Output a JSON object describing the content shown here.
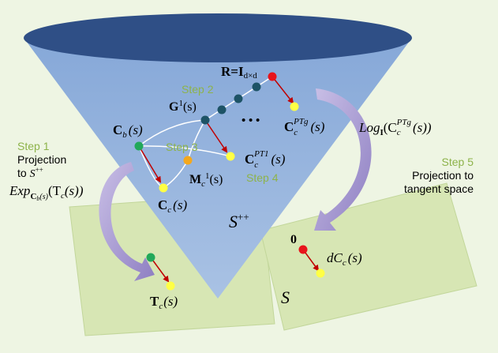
{
  "colors": {
    "background": "#eef5e3",
    "cone_fill": "#9bb8de",
    "cone_top": "#2f4f86",
    "tangent_plane": "#d7e6b4",
    "step_text": "#8db34a",
    "arrow": "#c00000",
    "curved_arrow": "#9c8ec9",
    "node_dark": "#1d5366",
    "node_green": "#22a85a",
    "node_orange": "#f4a81d",
    "node_yellow": "#ffff44",
    "node_red": "#e8141b"
  },
  "labels": {
    "r_identity": "R=I",
    "r_identity_sub": "d×d",
    "g1": "G",
    "g1_sup": "1",
    "g1_arg": "(s)",
    "ellipsis": "• • •",
    "c_c_ptg": "C",
    "c_c_ptg_sub": "c",
    "c_c_ptg_sup": "PTg",
    "c_c_ptg_arg": "(s)",
    "log_prefix": "Log",
    "log_sub": "I",
    "log_c": "(C",
    "log_c_sub": "c",
    "log_c_sup": "PTg",
    "log_arg": "(s))",
    "c_b": "C",
    "c_b_sub": "b",
    "c_b_arg": "(s)",
    "c_c_pt1": "C",
    "c_c_pt1_sub": "c",
    "c_c_pt1_sup": "PT1",
    "c_c_pt1_arg": "(s)",
    "m_c1": "M",
    "m_c1_sub": "c",
    "m_c1_sup": "1",
    "m_c1_arg": "(s)",
    "c_c": "C",
    "c_c_sub": "c",
    "c_c_arg": "(s)",
    "exp_prefix": "Exp",
    "exp_sub": "C",
    "exp_sub_b": "b",
    "exp_sub_arg": "(s)",
    "exp_arg": "(T",
    "exp_arg_sub": "c",
    "exp_arg_end": "(s))",
    "s_pp": "S",
    "s_pp_sup": "++",
    "s_plane": "S",
    "zero": "0",
    "dc": "dC",
    "dc_sub": "c",
    "dc_arg": "(s)",
    "t_c": "T",
    "t_c_sub": "c",
    "t_c_arg": "(s)"
  },
  "steps": {
    "step1": {
      "title": "Step 1",
      "line1": "Projection",
      "line2": "to ",
      "line2_s": "S",
      "line2_sup": "++"
    },
    "step2": {
      "title": "Step 2"
    },
    "step3": {
      "title": "Step 3"
    },
    "step4": {
      "title": "Step 4"
    },
    "step5": {
      "title": "Step 5",
      "line1": "Projection to",
      "line2": "tangent space"
    }
  }
}
